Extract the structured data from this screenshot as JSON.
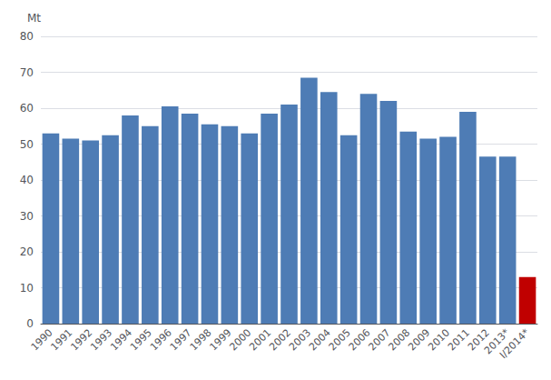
{
  "chart_data": {
    "type": "bar",
    "categories": [
      "1990",
      "1991",
      "1992",
      "1993",
      "1994",
      "1995",
      "1996",
      "1997",
      "1998",
      "1999",
      "2000",
      "2001",
      "2002",
      "2003",
      "2004",
      "2005",
      "2006",
      "2007",
      "2008",
      "2009",
      "2010",
      "2011",
      "2012",
      "2013*",
      "I/2014*"
    ],
    "values": [
      53.0,
      51.5,
      51.0,
      52.5,
      58.0,
      55.0,
      60.5,
      58.5,
      55.5,
      55.0,
      53.0,
      58.5,
      61.0,
      68.5,
      64.5,
      52.5,
      64.0,
      62.0,
      53.5,
      51.5,
      52.0,
      59.0,
      46.5,
      46.5,
      13.0
    ],
    "colors": [
      "#4e7cb5",
      "#4e7cb5",
      "#4e7cb5",
      "#4e7cb5",
      "#4e7cb5",
      "#4e7cb5",
      "#4e7cb5",
      "#4e7cb5",
      "#4e7cb5",
      "#4e7cb5",
      "#4e7cb5",
      "#4e7cb5",
      "#4e7cb5",
      "#4e7cb5",
      "#4e7cb5",
      "#4e7cb5",
      "#4e7cb5",
      "#4e7cb5",
      "#4e7cb5",
      "#4e7cb5",
      "#4e7cb5",
      "#4e7cb5",
      "#4e7cb5",
      "#4e7cb5",
      "#c00000"
    ],
    "ylabel": "Mt",
    "ylim": [
      0,
      80
    ],
    "yticks": [
      0,
      10,
      20,
      30,
      40,
      50,
      60,
      70,
      80
    ],
    "grid": true
  }
}
